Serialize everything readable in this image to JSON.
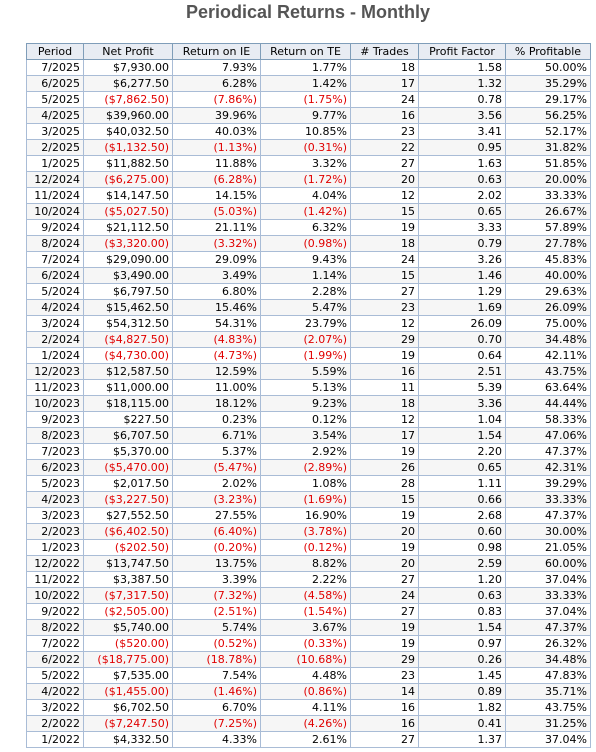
{
  "title": "Periodical Returns - Monthly",
  "table": {
    "columns": [
      "Period",
      "Net Profit",
      "Return on IE",
      "Return on TE",
      "# Trades",
      "Profit Factor",
      "% Profitable"
    ],
    "rows": [
      [
        "7/2025",
        "$7,930.00",
        "7.93%",
        "1.77%",
        "18",
        "1.58",
        "50.00%"
      ],
      [
        "6/2025",
        "$6,277.50",
        "6.28%",
        "1.42%",
        "17",
        "1.32",
        "35.29%"
      ],
      [
        "5/2025",
        "($7,862.50)",
        "(7.86%)",
        "(1.75%)",
        "24",
        "0.78",
        "29.17%"
      ],
      [
        "4/2025",
        "$39,960.00",
        "39.96%",
        "9.77%",
        "16",
        "3.56",
        "56.25%"
      ],
      [
        "3/2025",
        "$40,032.50",
        "40.03%",
        "10.85%",
        "23",
        "3.41",
        "52.17%"
      ],
      [
        "2/2025",
        "($1,132.50)",
        "(1.13%)",
        "(0.31%)",
        "22",
        "0.95",
        "31.82%"
      ],
      [
        "1/2025",
        "$11,882.50",
        "11.88%",
        "3.32%",
        "27",
        "1.63",
        "51.85%"
      ],
      [
        "12/2024",
        "($6,275.00)",
        "(6.28%)",
        "(1.72%)",
        "20",
        "0.63",
        "20.00%"
      ],
      [
        "11/2024",
        "$14,147.50",
        "14.15%",
        "4.04%",
        "12",
        "2.02",
        "33.33%"
      ],
      [
        "10/2024",
        "($5,027.50)",
        "(5.03%)",
        "(1.42%)",
        "15",
        "0.65",
        "26.67%"
      ],
      [
        "9/2024",
        "$21,112.50",
        "21.11%",
        "6.32%",
        "19",
        "3.33",
        "57.89%"
      ],
      [
        "8/2024",
        "($3,320.00)",
        "(3.32%)",
        "(0.98%)",
        "18",
        "0.79",
        "27.78%"
      ],
      [
        "7/2024",
        "$29,090.00",
        "29.09%",
        "9.43%",
        "24",
        "3.26",
        "45.83%"
      ],
      [
        "6/2024",
        "$3,490.00",
        "3.49%",
        "1.14%",
        "15",
        "1.46",
        "40.00%"
      ],
      [
        "5/2024",
        "$6,797.50",
        "6.80%",
        "2.28%",
        "27",
        "1.29",
        "29.63%"
      ],
      [
        "4/2024",
        "$15,462.50",
        "15.46%",
        "5.47%",
        "23",
        "1.69",
        "26.09%"
      ],
      [
        "3/2024",
        "$54,312.50",
        "54.31%",
        "23.79%",
        "12",
        "26.09",
        "75.00%"
      ],
      [
        "2/2024",
        "($4,827.50)",
        "(4.83%)",
        "(2.07%)",
        "29",
        "0.70",
        "34.48%"
      ],
      [
        "1/2024",
        "($4,730.00)",
        "(4.73%)",
        "(1.99%)",
        "19",
        "0.64",
        "42.11%"
      ],
      [
        "12/2023",
        "$12,587.50",
        "12.59%",
        "5.59%",
        "16",
        "2.51",
        "43.75%"
      ],
      [
        "11/2023",
        "$11,000.00",
        "11.00%",
        "5.13%",
        "11",
        "5.39",
        "63.64%"
      ],
      [
        "10/2023",
        "$18,115.00",
        "18.12%",
        "9.23%",
        "18",
        "3.36",
        "44.44%"
      ],
      [
        "9/2023",
        "$227.50",
        "0.23%",
        "0.12%",
        "12",
        "1.04",
        "58.33%"
      ],
      [
        "8/2023",
        "$6,707.50",
        "6.71%",
        "3.54%",
        "17",
        "1.54",
        "47.06%"
      ],
      [
        "7/2023",
        "$5,370.00",
        "5.37%",
        "2.92%",
        "19",
        "2.20",
        "47.37%"
      ],
      [
        "6/2023",
        "($5,470.00)",
        "(5.47%)",
        "(2.89%)",
        "26",
        "0.65",
        "42.31%"
      ],
      [
        "5/2023",
        "$2,017.50",
        "2.02%",
        "1.08%",
        "28",
        "1.11",
        "39.29%"
      ],
      [
        "4/2023",
        "($3,227.50)",
        "(3.23%)",
        "(1.69%)",
        "15",
        "0.66",
        "33.33%"
      ],
      [
        "3/2023",
        "$27,552.50",
        "27.55%",
        "16.90%",
        "19",
        "2.68",
        "47.37%"
      ],
      [
        "2/2023",
        "($6,402.50)",
        "(6.40%)",
        "(3.78%)",
        "20",
        "0.60",
        "30.00%"
      ],
      [
        "1/2023",
        "($202.50)",
        "(0.20%)",
        "(0.12%)",
        "19",
        "0.98",
        "21.05%"
      ],
      [
        "12/2022",
        "$13,747.50",
        "13.75%",
        "8.82%",
        "20",
        "2.59",
        "60.00%"
      ],
      [
        "11/2022",
        "$3,387.50",
        "3.39%",
        "2.22%",
        "27",
        "1.20",
        "37.04%"
      ],
      [
        "10/2022",
        "($7,317.50)",
        "(7.32%)",
        "(4.58%)",
        "24",
        "0.63",
        "33.33%"
      ],
      [
        "9/2022",
        "($2,505.00)",
        "(2.51%)",
        "(1.54%)",
        "27",
        "0.83",
        "37.04%"
      ],
      [
        "8/2022",
        "$5,740.00",
        "5.74%",
        "3.67%",
        "19",
        "1.54",
        "47.37%"
      ],
      [
        "7/2022",
        "($520.00)",
        "(0.52%)",
        "(0.33%)",
        "19",
        "0.97",
        "26.32%"
      ],
      [
        "6/2022",
        "($18,775.00)",
        "(18.78%)",
        "(10.68%)",
        "29",
        "0.26",
        "34.48%"
      ],
      [
        "5/2022",
        "$7,535.00",
        "7.54%",
        "4.48%",
        "23",
        "1.45",
        "47.83%"
      ],
      [
        "4/2022",
        "($1,455.00)",
        "(1.46%)",
        "(0.86%)",
        "14",
        "0.89",
        "35.71%"
      ],
      [
        "3/2022",
        "$6,702.50",
        "6.70%",
        "4.11%",
        "16",
        "1.82",
        "43.75%"
      ],
      [
        "2/2022",
        "($7,247.50)",
        "(7.25%)",
        "(4.26%)",
        "16",
        "0.41",
        "31.25%"
      ],
      [
        "1/2022",
        "$4,332.50",
        "4.33%",
        "2.61%",
        "27",
        "1.37",
        "37.04%"
      ]
    ]
  }
}
